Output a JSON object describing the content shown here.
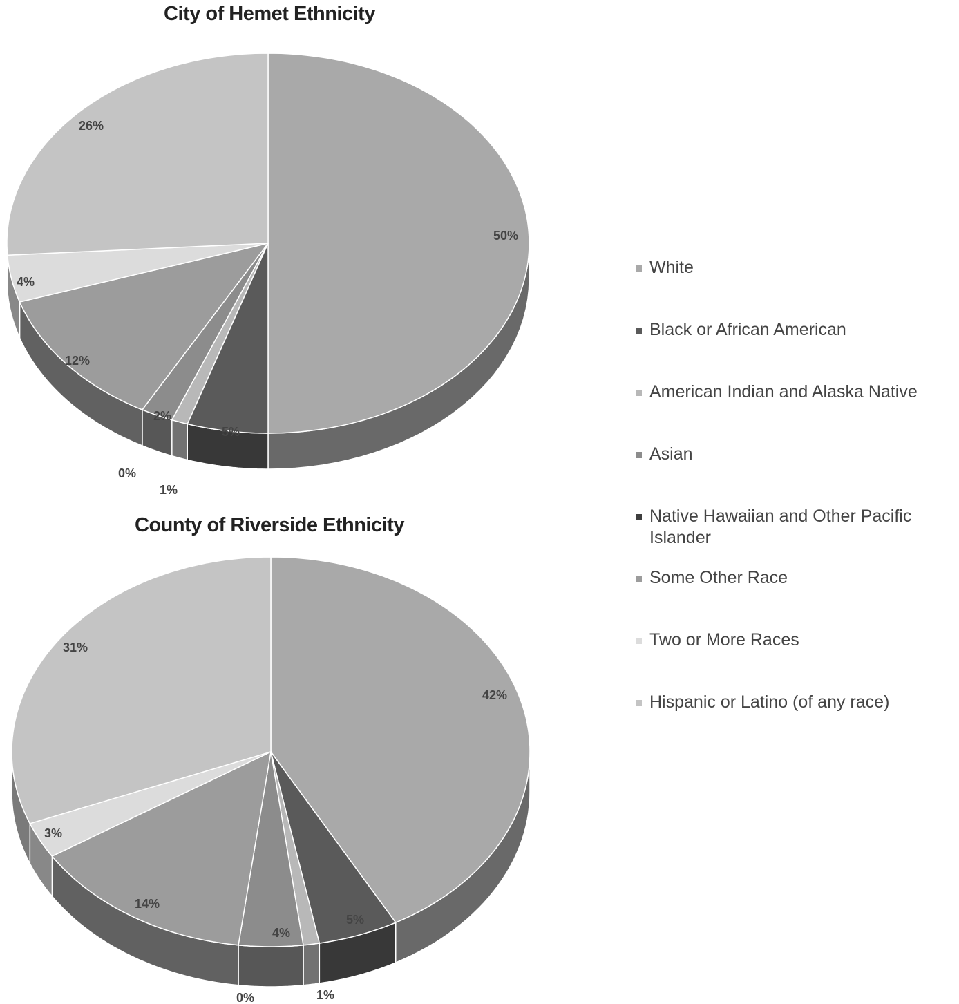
{
  "legend": [
    {
      "label": "White",
      "color": "#a9a9a9"
    },
    {
      "label": "Black or African American",
      "color": "#5a5a5a"
    },
    {
      "label": "American Indian and Alaska Native",
      "color": "#b8b8b8"
    },
    {
      "label": "Asian",
      "color": "#8c8c8c"
    },
    {
      "label": "Native Hawaiian and Other Pacific Islander",
      "color": "#3e3e3e"
    },
    {
      "label": "Some Other Race",
      "color": "#9c9c9c"
    },
    {
      "label": "Two or More Races",
      "color": "#dcdcdc"
    },
    {
      "label": "Hispanic or Latino (of any race)",
      "color": "#c4c4c4"
    }
  ],
  "chart_data": [
    {
      "type": "pie",
      "title": "City of Hemet Ethnicity",
      "categories": [
        "White",
        "Black or African American",
        "American Indian and Alaska Native",
        "Asian",
        "Native Hawaiian and Other Pacific Islander",
        "Some Other Race",
        "Two or More Races",
        "Hispanic or Latino (of any race)"
      ],
      "values": [
        50,
        5,
        1,
        2,
        0,
        12,
        4,
        26
      ],
      "labels": [
        "50%",
        "5%",
        "1%",
        "2%",
        "0%",
        "12%",
        "4%",
        "26%"
      ],
      "legend_position": "right"
    },
    {
      "type": "pie",
      "title": "County of Riverside Ethnicity",
      "categories": [
        "White",
        "Black or African American",
        "American Indian and Alaska Native",
        "Asian",
        "Native Hawaiian and Other Pacific Islander",
        "Some Other Race",
        "Two or More Races",
        "Hispanic or Latino (of any race)"
      ],
      "values": [
        42,
        5,
        1,
        4,
        0,
        14,
        3,
        31
      ],
      "labels": [
        "42%",
        "5%",
        "1%",
        "4%",
        "0%",
        "14%",
        "3%",
        "31%"
      ],
      "legend_position": "right"
    }
  ]
}
